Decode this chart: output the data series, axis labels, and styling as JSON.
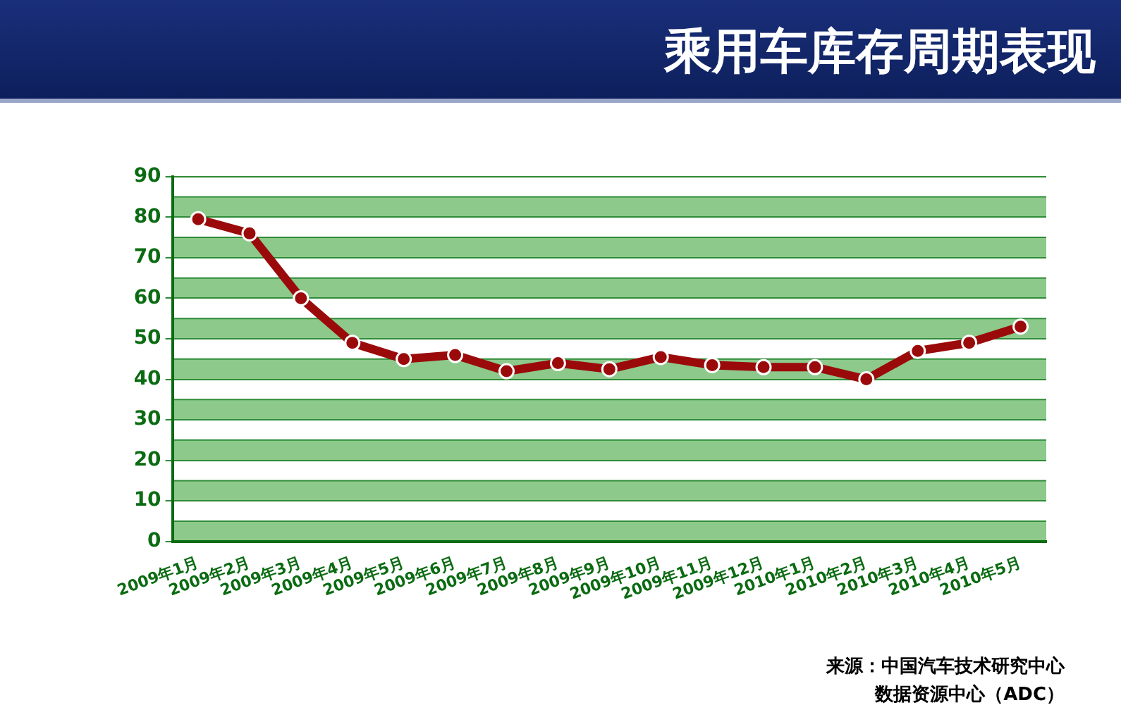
{
  "chart_data": {
    "type": "line",
    "title": "乘用车库存周期表现",
    "categories": [
      "2009年1月",
      "2009年2月",
      "2009年3月",
      "2009年4月",
      "2009年5月",
      "2009年6月",
      "2009年7月",
      "2009年8月",
      "2009年9月",
      "2009年10月",
      "2009年11月",
      "2009年12月",
      "2010年1月",
      "2010年2月",
      "2010年3月",
      "2010年4月",
      "2010年5月"
    ],
    "series": [
      {
        "color": "#9b0a0a",
        "values": [
          79.5,
          76,
          60,
          49,
          45,
          46,
          42,
          44,
          42.5,
          45.5,
          43.5,
          43,
          43,
          40,
          47,
          49,
          53
        ]
      }
    ],
    "bands": [
      {
        "axis": "y",
        "from": 0,
        "to": 5,
        "color": "#8cc98a"
      },
      {
        "axis": "y",
        "from": 10,
        "to": 15,
        "color": "#8cc98a"
      },
      {
        "axis": "y",
        "from": 20,
        "to": 25,
        "color": "#8cc98a"
      },
      {
        "axis": "y",
        "from": 30,
        "to": 35,
        "color": "#8cc98a"
      },
      {
        "axis": "y",
        "from": 40,
        "to": 45,
        "color": "#8cc98a"
      },
      {
        "axis": "y",
        "from": 50,
        "to": 55,
        "color": "#8cc98a"
      },
      {
        "axis": "y",
        "from": 60,
        "to": 65,
        "color": "#8cc98a"
      },
      {
        "axis": "y",
        "from": 70,
        "to": 75,
        "color": "#8cc98a"
      },
      {
        "axis": "y",
        "from": 80,
        "to": 85,
        "color": "#8cc98a"
      }
    ],
    "ylim": [
      0,
      90
    ],
    "yticks": [
      0,
      10,
      20,
      30,
      40,
      50,
      60,
      70,
      80,
      90
    ],
    "grid": "y",
    "marker": "circle",
    "legend": false,
    "annotations": [
      "来源：中国汽车技术研究中心",
      "数据资源中心（ADC）"
    ]
  }
}
